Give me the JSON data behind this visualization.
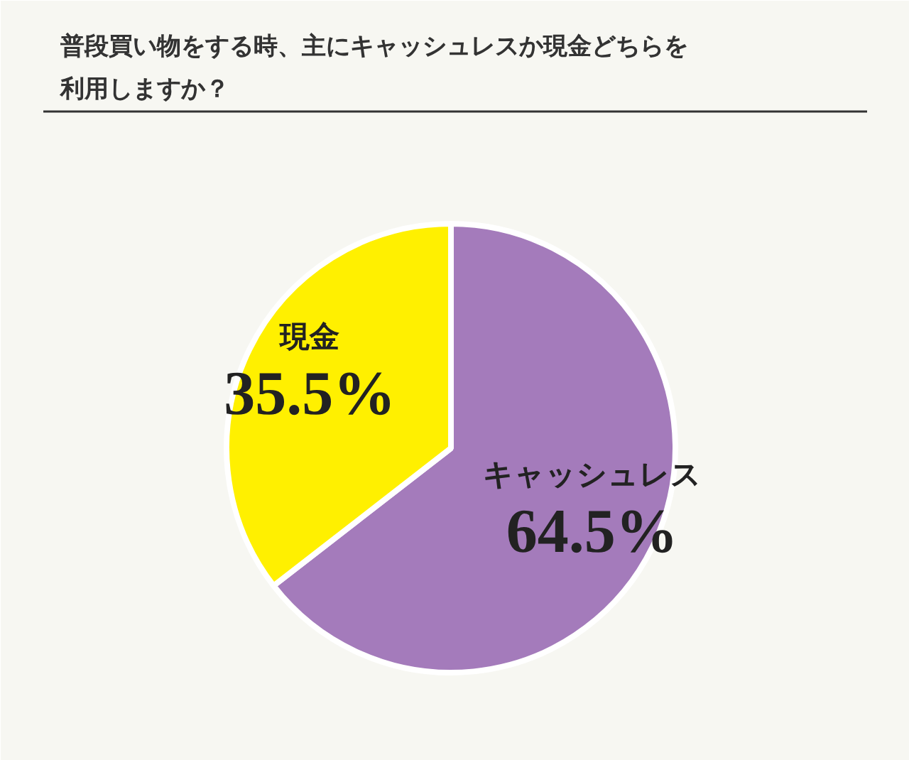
{
  "chart_data": {
    "type": "pie",
    "title": "普段買い物をする時、主にキャッシュレスか現金どちらを利用しますか？",
    "categories": [
      "キャッシュレス",
      "現金"
    ],
    "values": [
      64.5,
      35.5
    ],
    "colors": [
      "#a47bbb",
      "#fff000"
    ],
    "value_labels": [
      "64.5%",
      "35.5%"
    ]
  }
}
